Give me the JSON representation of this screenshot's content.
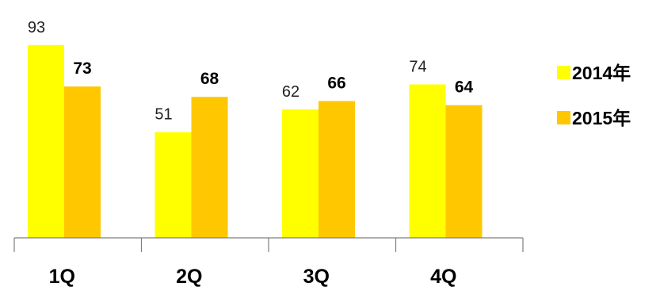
{
  "chart_data": {
    "type": "bar",
    "categories": [
      "1Q",
      "2Q",
      "3Q",
      "4Q"
    ],
    "series": [
      {
        "name": "2014年",
        "values": [
          93,
          51,
          62,
          74
        ],
        "color": "#FFFF00"
      },
      {
        "name": "2015年",
        "values": [
          73,
          68,
          66,
          64
        ],
        "color": "#FFC700"
      }
    ],
    "ylim": [
      0,
      100
    ],
    "grid": false,
    "legend_position": "right",
    "data_labels": true
  }
}
